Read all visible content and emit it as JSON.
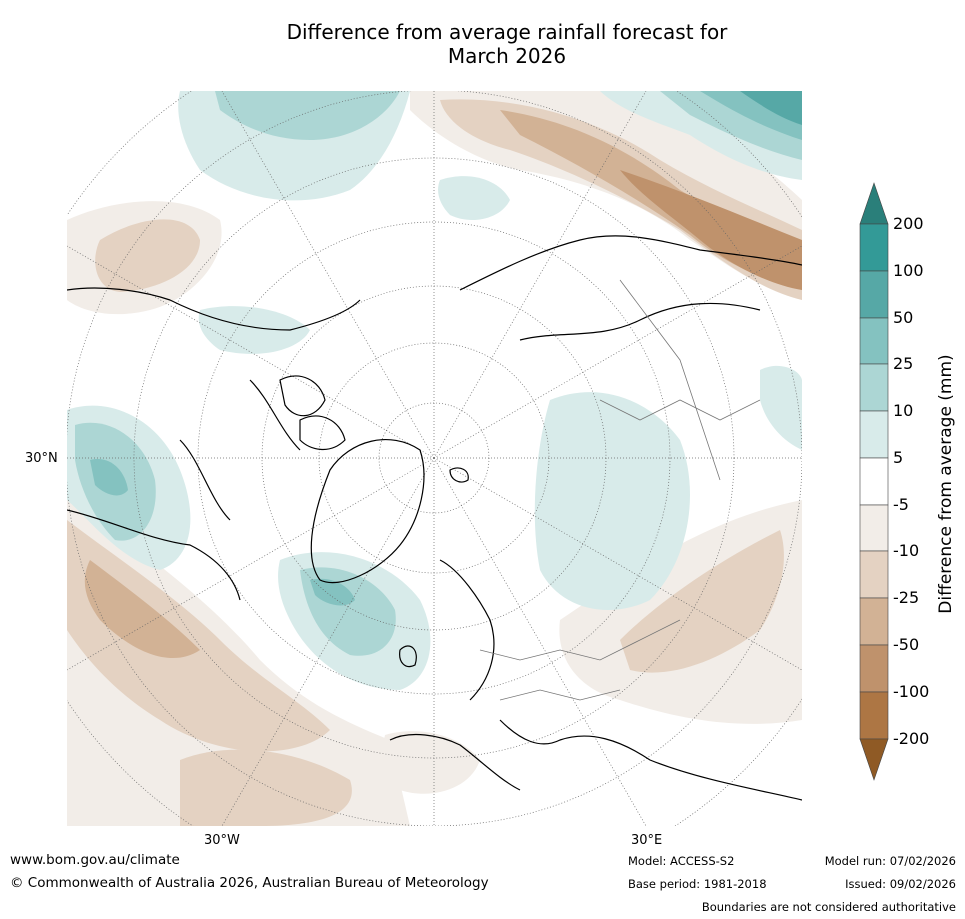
{
  "title_line1": "Difference from average rainfall forecast for",
  "title_line2": "March 2026",
  "map": {
    "projection": "north-polar-stereographic",
    "lat_label": "30°N",
    "lon_labels": [
      "30°W",
      "30°E"
    ]
  },
  "colorbar": {
    "title": "Difference from average (mm)",
    "tick_labels": [
      "200",
      "100",
      "50",
      "25",
      "10",
      "5",
      "-5",
      "-10",
      "-25",
      "-50",
      "-100",
      "-200"
    ],
    "colors": {
      "over": "#2a7f7a",
      "t200": "#339a97",
      "t100": "#56a8a6",
      "t50": "#84c2c0",
      "t25": "#acd6d4",
      "t10": "#d8ebea",
      "neutral": "#ffffff",
      "d10": "#f2ede8",
      "d25": "#e4d2c2",
      "d50": "#d2b295",
      "d100": "#bf926c",
      "d200": "#ad7644",
      "under": "#8f5a25"
    }
  },
  "footer": {
    "website": "www.bom.gov.au/climate",
    "copyright": "© Commonwealth of Australia 2026, Australian Bureau of Meteorology",
    "model": "Model: ACCESS-S2",
    "base_period": "Base period: 1981-2018",
    "model_run": "Model run: 07/02/2026",
    "issued": "Issued: 09/02/2026",
    "disclaimer": "Boundaries are not considered authoritative"
  }
}
